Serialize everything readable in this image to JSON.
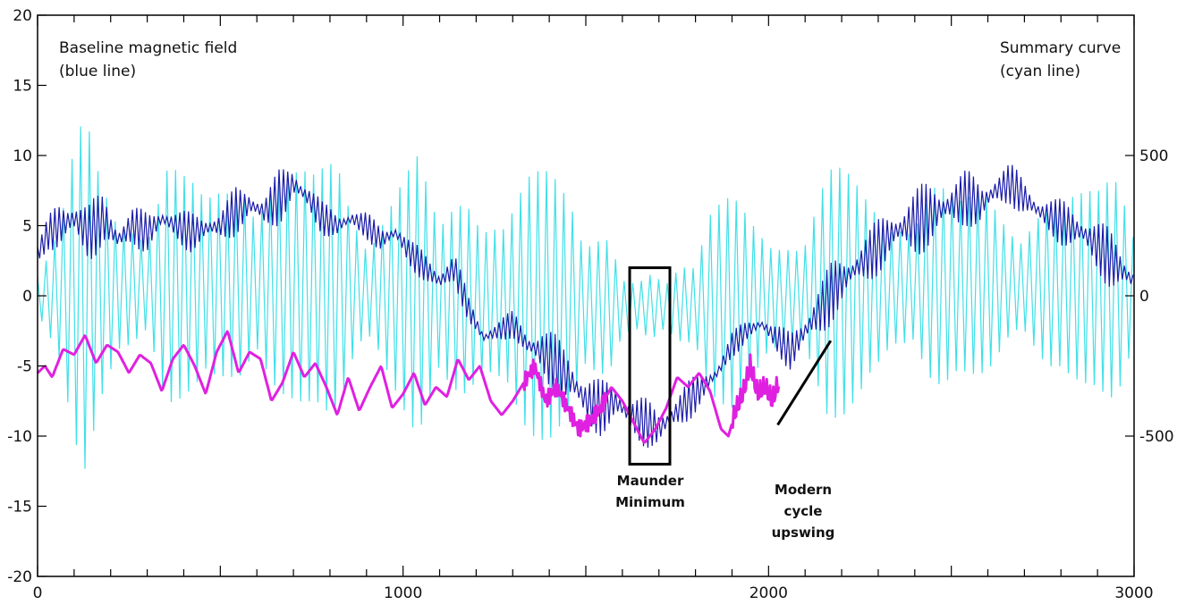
{
  "chart_data": {
    "type": "line",
    "x_axis": {
      "range": [
        0,
        3000
      ],
      "ticks": [
        0,
        1000,
        2000,
        3000
      ],
      "tick_labels": [
        "0",
        "1000",
        "2000",
        "3000"
      ]
    },
    "y_left": {
      "range": [
        -20,
        20
      ],
      "ticks": [
        20,
        15,
        10,
        5,
        0,
        -5,
        -10,
        -15,
        -20
      ],
      "tick_labels": [
        "20",
        "15",
        "10",
        "5",
        "0",
        "-5",
        "-10",
        "-15",
        "-20"
      ]
    },
    "y_right": {
      "range": [
        -1000,
        1000
      ],
      "ticks": [
        500,
        0,
        -500
      ],
      "tick_labels": [
        "500",
        "0",
        "-500"
      ]
    },
    "grid": false,
    "annotations": {
      "left_top": [
        "Baseline magnetic field",
        "(blue line)"
      ],
      "right_top": [
        "Summary curve",
        "(cyan line)"
      ],
      "maunder": [
        "Maunder",
        "Minimum"
      ],
      "modern": [
        "Modern",
        "cycle",
        "upswing"
      ]
    },
    "maunder_box": {
      "x": [
        1620,
        1730
      ],
      "y": [
        -12,
        2
      ]
    },
    "modern_line": {
      "x": [
        2025,
        2170
      ],
      "y": [
        -9.2,
        -3.2
      ]
    },
    "series": [
      {
        "color": "#40e0e8",
        "axis": "right",
        "envelope_x": [
          0,
          60,
          100,
          130,
          170,
          220,
          300,
          350,
          400,
          460,
          520,
          560,
          640,
          700,
          760,
          820,
          860,
          920,
          980,
          1040,
          1100,
          1140,
          1190,
          1230,
          1280,
          1340,
          1400,
          1460,
          1520,
          1560,
          1600,
          1640,
          1680,
          1720,
          1760,
          1800,
          1840,
          1900,
          1950,
          2000,
          2040,
          2080,
          2120,
          2160,
          2200,
          2240,
          2280,
          2340,
          2400,
          2450,
          2520,
          2560,
          2600,
          2660,
          2700,
          2760,
          2800,
          2860,
          2900,
          2950,
          2980,
          3000
        ],
        "envelope_y": [
          150,
          300,
          560,
          640,
          400,
          250,
          330,
          560,
          420,
          300,
          380,
          480,
          500,
          430,
          400,
          520,
          380,
          300,
          400,
          500,
          260,
          420,
          640,
          380,
          300,
          450,
          520,
          540,
          380,
          300,
          100,
          80,
          120,
          90,
          200,
          300,
          450,
          400,
          280,
          200,
          220,
          300,
          440,
          540,
          470,
          380,
          300,
          260,
          420,
          460,
          300,
          320,
          340,
          280,
          330,
          350,
          300,
          340,
          380,
          560,
          540,
          380
        ],
        "period": 23.6
      },
      {
        "color": "#1c1ca8",
        "axis": "left",
        "x": [
          0,
          30,
          60,
          100,
          140,
          180,
          220,
          260,
          300,
          340,
          380,
          420,
          460,
          500,
          540,
          580,
          620,
          660,
          700,
          740,
          780,
          820,
          860,
          900,
          940,
          980,
          1020,
          1060,
          1100,
          1140,
          1180,
          1220,
          1260,
          1300,
          1340,
          1380,
          1420,
          1460,
          1500,
          1540,
          1580,
          1620,
          1660,
          1700,
          1740,
          1780,
          1820,
          1860,
          1900,
          1940,
          1980,
          2020,
          2060,
          2100,
          2140,
          2180,
          2220,
          2260,
          2300,
          2340,
          2380,
          2420,
          2460,
          2500,
          2540,
          2580,
          2620,
          2660,
          2700,
          2740,
          2780,
          2820,
          2860,
          2900,
          2940,
          2980,
          3000
        ],
        "y": [
          3.0,
          4.5,
          5.0,
          5.5,
          4.5,
          5.5,
          4.0,
          5.0,
          4.5,
          5.5,
          5.0,
          4.5,
          4.8,
          5.0,
          6.0,
          6.5,
          6.0,
          7.0,
          8.0,
          7.0,
          5.5,
          5.0,
          5.5,
          5.0,
          4.0,
          4.5,
          3.0,
          2.0,
          1.0,
          2.0,
          -1.0,
          -3.0,
          -2.5,
          -2.0,
          -3.5,
          -4.0,
          -5.0,
          -6.0,
          -7.5,
          -8.0,
          -7.5,
          -8.5,
          -9.0,
          -9.5,
          -8.5,
          -7.5,
          -6.5,
          -5.5,
          -3.5,
          -2.5,
          -2.0,
          -3.0,
          -4.0,
          -2.5,
          -1.0,
          0.5,
          1.5,
          2.5,
          3.5,
          4.5,
          5.0,
          5.5,
          6.0,
          6.5,
          7.0,
          6.5,
          7.5,
          8.0,
          7.0,
          6.0,
          5.5,
          5.0,
          4.5,
          3.5,
          2.5,
          1.5,
          1.0
        ],
        "wiggle": [
          0.8,
          1.2,
          2.0,
          2.5,
          2.2,
          2.0,
          1.8,
          1.5,
          1.5,
          1.2,
          1.2,
          1.5,
          1.5,
          1.2,
          1.8,
          1.5,
          1.5,
          2.0,
          1.5,
          1.5,
          1.2,
          1.0,
          1.0,
          1.0,
          1.0,
          1.0,
          1.0,
          1.2,
          1.5,
          1.2,
          1.0,
          0.8,
          0.8,
          1.0,
          1.5,
          2.0,
          2.2,
          2.5,
          2.2,
          2.0,
          1.8,
          1.8,
          1.8,
          1.5,
          1.8,
          1.5,
          1.2,
          1.0,
          1.0,
          0.8,
          0.8,
          1.0,
          1.5,
          2.0,
          2.2,
          2.2,
          2.0,
          2.0,
          2.0,
          2.2,
          2.5,
          2.5,
          2.5,
          2.2,
          2.0,
          2.0,
          1.8,
          1.5,
          1.5,
          1.5,
          1.5,
          1.8,
          2.0,
          2.0,
          2.2,
          1.8,
          1.5
        ]
      },
      {
        "color": "#e020e0",
        "axis": "left",
        "x": [
          0,
          20,
          40,
          70,
          100,
          130,
          160,
          190,
          220,
          250,
          280,
          310,
          340,
          370,
          400,
          430,
          460,
          490,
          520,
          550,
          580,
          610,
          640,
          670,
          700,
          730,
          760,
          790,
          820,
          850,
          880,
          910,
          940,
          970,
          1000,
          1030,
          1060,
          1090,
          1120,
          1150,
          1180,
          1210,
          1240,
          1270,
          1300,
          1330,
          1360,
          1390,
          1420,
          1450,
          1480,
          1510,
          1540,
          1570,
          1600,
          1630,
          1660,
          1690,
          1720,
          1750,
          1780,
          1810,
          1840,
          1870,
          1890,
          1910,
          1930,
          1950,
          1970,
          1990,
          2010,
          2030
        ],
        "y": [
          -5.5,
          -5.0,
          -5.8,
          -3.8,
          -4.2,
          -2.8,
          -4.8,
          -3.5,
          -4.0,
          -5.5,
          -4.2,
          -4.8,
          -6.8,
          -4.5,
          -3.5,
          -5.0,
          -7.0,
          -4.0,
          -2.5,
          -5.5,
          -4.0,
          -4.5,
          -7.5,
          -6.2,
          -4.0,
          -5.8,
          -4.8,
          -6.5,
          -8.5,
          -5.8,
          -8.2,
          -6.5,
          -5.0,
          -8.0,
          -7.0,
          -5.5,
          -7.8,
          -6.5,
          -7.2,
          -4.5,
          -6.0,
          -5.0,
          -7.5,
          -8.5,
          -7.5,
          -6.2,
          -5.0,
          -7.5,
          -6.5,
          -8.0,
          -9.5,
          -9.0,
          -8.0,
          -6.5,
          -7.5,
          -9.0,
          -10.5,
          -9.5,
          -8.0,
          -5.8,
          -6.5,
          -5.5,
          -6.8,
          -9.5,
          -10.0,
          -8.2,
          -7.0,
          -5.0,
          -7.0,
          -6.5,
          -7.5,
          -6.0
        ]
      }
    ]
  }
}
